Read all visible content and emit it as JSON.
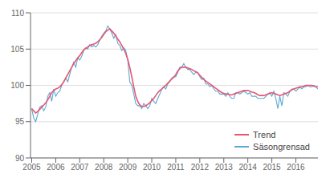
{
  "chart_data": {
    "type": "line",
    "title": "",
    "legend": "lower right",
    "grid": true,
    "xlim": [
      2004.95,
      2016.92
    ],
    "xticks": [
      2005,
      2006,
      2007,
      2008,
      2009,
      2010,
      2011,
      2012,
      2013,
      2014,
      2015,
      2016
    ],
    "ylim": [
      90,
      110
    ],
    "yticks": [
      90,
      95,
      100,
      105,
      110
    ],
    "x": [
      2005,
      2005.0833,
      2005.1667,
      2005.25,
      2005.3333,
      2005.4167,
      2005.5,
      2005.5833,
      2005.6667,
      2005.75,
      2005.8333,
      2005.9167,
      2006,
      2006.0833,
      2006.1667,
      2006.25,
      2006.3333,
      2006.4167,
      2006.5,
      2006.5833,
      2006.6667,
      2006.75,
      2006.8333,
      2006.9167,
      2007,
      2007.0833,
      2007.1667,
      2007.25,
      2007.3333,
      2007.4167,
      2007.5,
      2007.5833,
      2007.6667,
      2007.75,
      2007.8333,
      2007.9167,
      2008,
      2008.0833,
      2008.1667,
      2008.25,
      2008.3333,
      2008.4167,
      2008.5,
      2008.5833,
      2008.6667,
      2008.75,
      2008.8333,
      2008.9167,
      2009,
      2009.0833,
      2009.1667,
      2009.25,
      2009.3333,
      2009.4167,
      2009.5,
      2009.5833,
      2009.6667,
      2009.75,
      2009.8333,
      2009.9167,
      2010,
      2010.0833,
      2010.1667,
      2010.25,
      2010.3333,
      2010.4167,
      2010.5,
      2010.5833,
      2010.6667,
      2010.75,
      2010.8333,
      2010.9167,
      2011,
      2011.0833,
      2011.1667,
      2011.25,
      2011.3333,
      2011.4167,
      2011.5,
      2011.5833,
      2011.6667,
      2011.75,
      2011.8333,
      2011.9167,
      2012,
      2012.0833,
      2012.1667,
      2012.25,
      2012.3333,
      2012.4167,
      2012.5,
      2012.5833,
      2012.6667,
      2012.75,
      2012.8333,
      2012.9167,
      2013,
      2013.0833,
      2013.1667,
      2013.25,
      2013.3333,
      2013.4167,
      2013.5,
      2013.5833,
      2013.6667,
      2013.75,
      2013.8333,
      2013.9167,
      2014,
      2014.0833,
      2014.1667,
      2014.25,
      2014.3333,
      2014.4167,
      2014.5,
      2014.5833,
      2014.6667,
      2014.75,
      2014.8333,
      2014.9167,
      2015,
      2015.0833,
      2015.1667,
      2015.25,
      2015.3333,
      2015.4167,
      2015.5,
      2015.5833,
      2015.6667,
      2015.75,
      2015.8333,
      2015.9167,
      2016,
      2016.0833,
      2016.1667,
      2016.25,
      2016.3333,
      2016.4167,
      2016.5,
      2016.5833,
      2016.6667,
      2016.75,
      2016.8333,
      2016.9167
    ],
    "series": [
      {
        "name": "Säsongrensad",
        "color": "#5baad4",
        "values": [
          96.8,
          95.5,
          95.0,
          96.0,
          97.0,
          97.2,
          96.5,
          97.0,
          98.5,
          99.0,
          97.8,
          99.5,
          98.5,
          99.0,
          99.2,
          100.0,
          100.5,
          101.0,
          100.5,
          101.5,
          102.5,
          103.2,
          102.5,
          103.8,
          103.5,
          104.0,
          104.8,
          105.2,
          105.0,
          105.6,
          105.3,
          105.5,
          105.3,
          105.6,
          106.2,
          106.8,
          107.2,
          107.5,
          108.2,
          107.8,
          107.2,
          106.5,
          107.0,
          105.8,
          105.5,
          104.8,
          105.2,
          104.8,
          103.5,
          100.5,
          100.0,
          98.8,
          97.5,
          97.2,
          97.2,
          96.8,
          97.5,
          97.2,
          96.8,
          97.2,
          98.2,
          97.8,
          97.5,
          98.2,
          98.8,
          99.5,
          99.8,
          99.5,
          100.2,
          100.5,
          101.0,
          101.2,
          101.2,
          101.8,
          102.5,
          102.5,
          103.0,
          102.5,
          102.2,
          102.2,
          101.8,
          101.5,
          101.8,
          101.8,
          101.2,
          100.8,
          101.0,
          100.2,
          100.2,
          99.8,
          100.0,
          99.5,
          99.2,
          99.2,
          98.8,
          98.8,
          98.8,
          98.5,
          99.0,
          98.5,
          98.2,
          98.2,
          99.0,
          99.0,
          98.8,
          99.0,
          99.2,
          99.0,
          98.8,
          99.0,
          98.5,
          98.5,
          98.5,
          98.2,
          98.2,
          98.2,
          98.2,
          98.5,
          98.8,
          99.0,
          98.5,
          99.2,
          98.2,
          96.8,
          98.5,
          97.2,
          99.0,
          98.8,
          98.5,
          99.2,
          99.5,
          99.5,
          99.2,
          99.5,
          99.8,
          99.5,
          99.8,
          99.8,
          100.0,
          99.8,
          99.8,
          100.0,
          99.8,
          99.5
        ]
      },
      {
        "name": "Trend",
        "color": "#e8556e",
        "values": [
          96.8,
          96.5,
          96.2,
          96.4,
          96.7,
          97.0,
          97.3,
          97.6,
          98.0,
          98.5,
          99.0,
          99.3,
          99.5,
          99.6,
          99.8,
          100.1,
          100.5,
          101.0,
          101.5,
          102.0,
          102.5,
          103.0,
          103.4,
          103.8,
          104.1,
          104.5,
          104.9,
          105.1,
          105.3,
          105.5,
          105.6,
          105.7,
          105.8,
          106.0,
          106.3,
          106.6,
          107.0,
          107.4,
          107.6,
          107.8,
          107.5,
          107.2,
          106.8,
          106.4,
          106.0,
          105.5,
          105.0,
          104.4,
          103.6,
          102.5,
          101.2,
          99.8,
          98.5,
          97.8,
          97.3,
          97.1,
          97.1,
          97.2,
          97.4,
          97.6,
          97.9,
          98.2,
          98.6,
          99.0,
          99.3,
          99.5,
          99.8,
          100.0,
          100.3,
          100.6,
          100.9,
          101.1,
          101.5,
          102.0,
          102.3,
          102.5,
          102.5,
          102.5,
          102.4,
          102.3,
          102.2,
          102.0,
          101.9,
          101.7,
          101.4,
          101.1,
          100.8,
          100.6,
          100.4,
          100.2,
          100.0,
          99.8,
          99.6,
          99.4,
          99.2,
          99.0,
          98.9,
          98.8,
          98.8,
          98.7,
          98.7,
          98.8,
          98.9,
          99.0,
          99.1,
          99.2,
          99.3,
          99.3,
          99.3,
          99.2,
          99.1,
          99.0,
          98.9,
          98.7,
          98.6,
          98.6,
          98.6,
          98.7,
          98.8,
          98.9,
          99.0,
          98.9,
          98.8,
          98.7,
          98.6,
          98.7,
          98.8,
          98.9,
          99.0,
          99.2,
          99.4,
          99.5,
          99.6,
          99.7,
          99.8,
          99.8,
          99.9,
          100.0,
          100.0,
          100.0,
          100.0,
          99.9,
          99.8,
          99.8
        ]
      }
    ]
  }
}
